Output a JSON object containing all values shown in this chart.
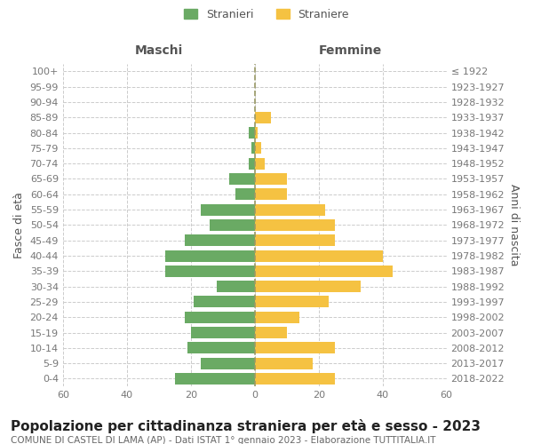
{
  "age_groups": [
    "100+",
    "95-99",
    "90-94",
    "85-89",
    "80-84",
    "75-79",
    "70-74",
    "65-69",
    "60-64",
    "55-59",
    "50-54",
    "45-49",
    "40-44",
    "35-39",
    "30-34",
    "25-29",
    "20-24",
    "15-19",
    "10-14",
    "5-9",
    "0-4"
  ],
  "birth_years": [
    "≤ 1922",
    "1923-1927",
    "1928-1932",
    "1933-1937",
    "1938-1942",
    "1943-1947",
    "1948-1952",
    "1953-1957",
    "1958-1962",
    "1963-1967",
    "1968-1972",
    "1973-1977",
    "1978-1982",
    "1983-1987",
    "1988-1992",
    "1993-1997",
    "1998-2002",
    "2003-2007",
    "2008-2012",
    "2013-2017",
    "2018-2022"
  ],
  "males": [
    0,
    0,
    0,
    0,
    2,
    1,
    2,
    8,
    6,
    17,
    14,
    22,
    28,
    28,
    12,
    19,
    22,
    20,
    21,
    17,
    25
  ],
  "females": [
    0,
    0,
    0,
    5,
    1,
    2,
    3,
    10,
    10,
    22,
    25,
    25,
    40,
    43,
    33,
    23,
    14,
    10,
    25,
    18,
    25
  ],
  "male_color": "#6aaa64",
  "female_color": "#f5c242",
  "center_line_color": "#999966",
  "grid_color": "#cccccc",
  "bg_color": "#ffffff",
  "bar_height": 0.75,
  "xlim": 60,
  "title": "Popolazione per cittadinanza straniera per età e sesso - 2023",
  "subtitle": "COMUNE DI CASTEL DI LAMA (AP) - Dati ISTAT 1° gennaio 2023 - Elaborazione TUTTITALIA.IT",
  "xlabel_left": "Maschi",
  "xlabel_right": "Femmine",
  "ylabel_left": "Fasce di età",
  "ylabel_right": "Anni di nascita",
  "legend_male": "Stranieri",
  "legend_female": "Straniere",
  "title_fontsize": 11,
  "subtitle_fontsize": 7.5,
  "tick_fontsize": 8,
  "label_fontsize": 9
}
